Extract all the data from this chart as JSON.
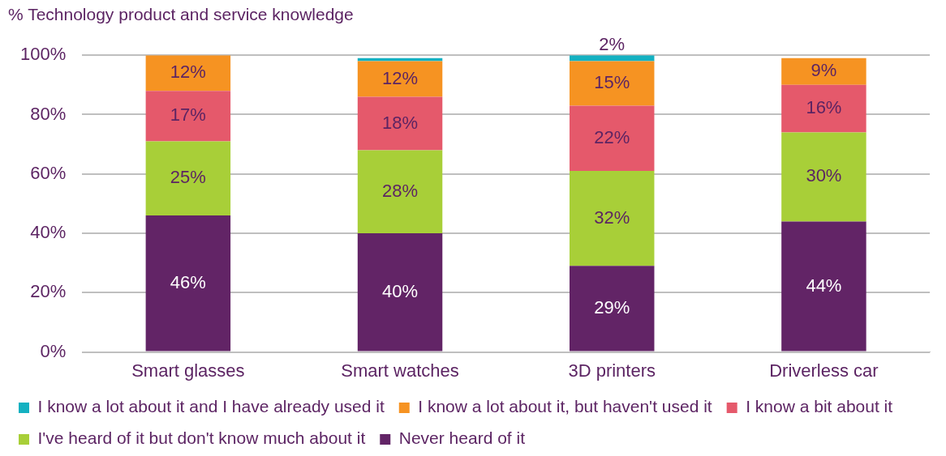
{
  "chart_data": {
    "type": "bar",
    "title": "% Technology product and service knowledge",
    "categories": [
      "Smart glasses",
      "Smart watches",
      "3D printers",
      "Driverless car"
    ],
    "stacked": true,
    "series": [
      {
        "name": "Never heard of it",
        "color": "#622466",
        "values": [
          46,
          40,
          29,
          44
        ],
        "value_labels": [
          "46%",
          "40%",
          "29%",
          "44%"
        ]
      },
      {
        "name": "I've heard of it but don't know much about it",
        "color": "#a8cf38",
        "values": [
          25,
          28,
          32,
          30
        ],
        "value_labels": [
          "25%",
          "28%",
          "32%",
          "30%"
        ]
      },
      {
        "name": "I know a bit about it",
        "color": "#e5596b",
        "values": [
          17,
          18,
          22,
          16
        ],
        "value_labels": [
          "17%",
          "18%",
          "22%",
          "16%"
        ]
      },
      {
        "name": "I know a lot about it, but haven't used it",
        "color": "#f69322",
        "values": [
          12,
          12,
          15,
          9
        ],
        "value_labels": [
          "12%",
          "12%",
          "15%",
          "9%"
        ]
      },
      {
        "name": "I know a lot about it and I have already used it",
        "color": "#14b1c1",
        "values": [
          null,
          1,
          2,
          null
        ],
        "value_labels": [
          null,
          null,
          "2%",
          null
        ]
      }
    ],
    "ylim": [
      0,
      100
    ],
    "yticks": [
      {
        "value": 0,
        "label": "0%"
      },
      {
        "value": 20,
        "label": "20%"
      },
      {
        "value": 40,
        "label": "40%"
      },
      {
        "value": 60,
        "label": "60%"
      },
      {
        "value": 80,
        "label": "80%"
      },
      {
        "value": 100,
        "label": "100%"
      }
    ],
    "grid": "y",
    "legend": "bottom"
  }
}
